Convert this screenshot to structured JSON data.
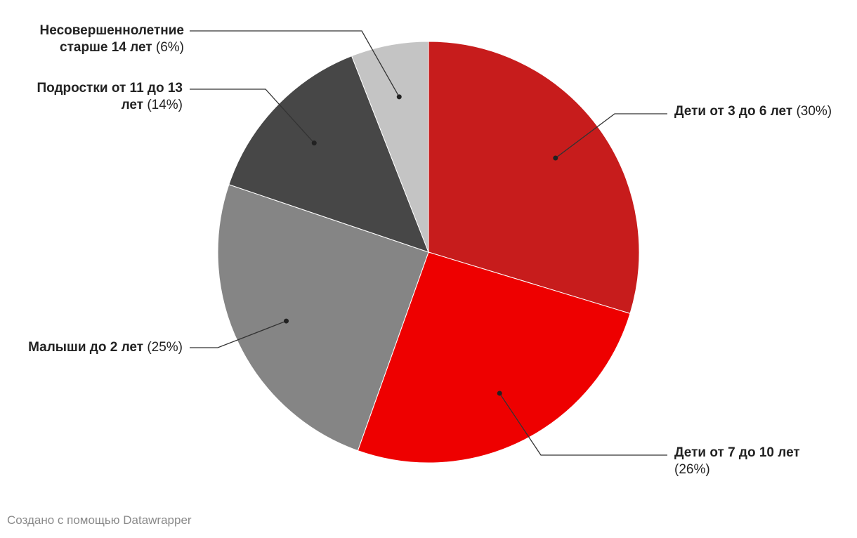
{
  "chart_data": {
    "type": "pie",
    "categories": [
      "Дети от 3 до 6 лет",
      "Дети от 7 до 10 лет",
      "Малыши до 2 лет",
      "Подростки от 11 до 13 лет",
      "Несовершеннолетние старше 14 лет"
    ],
    "values": [
      30,
      26,
      25,
      14,
      6
    ],
    "value_labels": [
      "(30%)",
      "(26%)",
      "(25%)",
      "(14%)",
      "(6%)"
    ],
    "colors": [
      "#c71c1c",
      "#ee0000",
      "#858585",
      "#474747",
      "#c4c4c4"
    ],
    "footer": "Создано с помощью Datawrapper"
  }
}
